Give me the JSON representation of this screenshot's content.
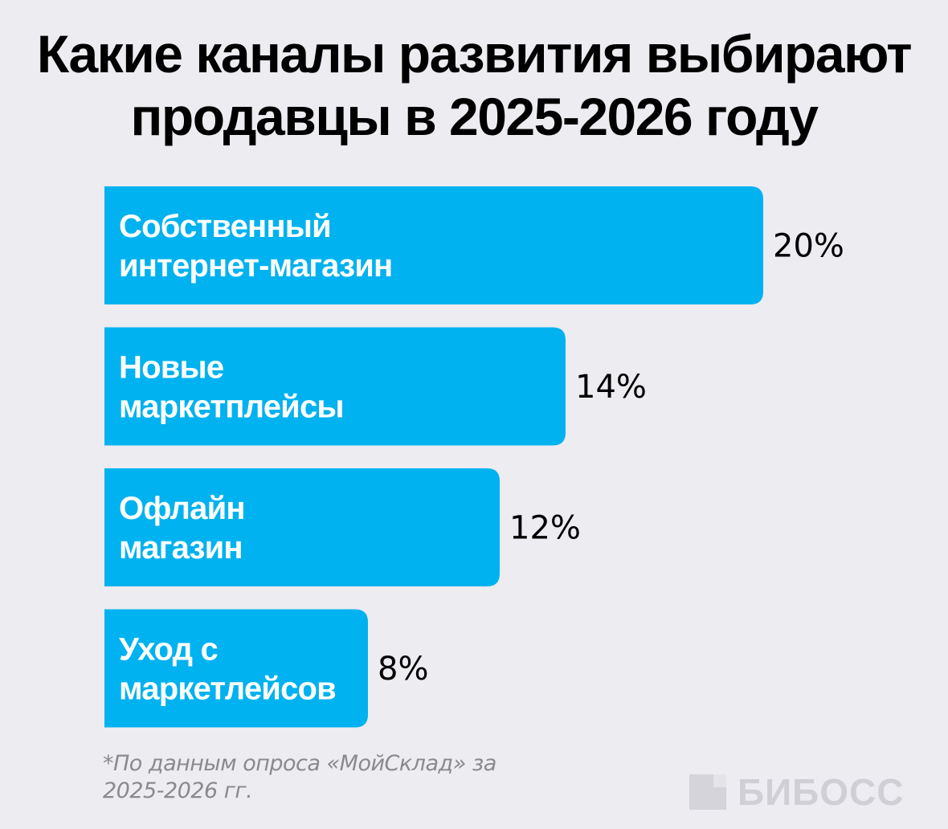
{
  "title": {
    "line1": "Какие каналы развития выбирают",
    "line2": "продавцы в 2025-2026 году"
  },
  "chart_data": {
    "type": "bar",
    "orientation": "horizontal",
    "categories": [
      [
        "Собственный",
        "интернет-магазин"
      ],
      [
        "Новые",
        "маркетплейсы"
      ],
      [
        "Офлайн",
        "магазин"
      ],
      [
        "Уход с",
        "маркетлейсов"
      ]
    ],
    "values": [
      20,
      14,
      12,
      8
    ],
    "value_labels": [
      "20%",
      "14%",
      "12%",
      "8%"
    ],
    "unit": "%",
    "bar_color": "#00B2EF",
    "bar_label_color": "#FFFFFF",
    "value_label_color": "#000000",
    "xlim": [
      0,
      20
    ],
    "grid": false,
    "legend": "none"
  },
  "footnote": {
    "line1": "*По данным опроса «МойСклад» за",
    "line2": "2025-2026 гг."
  },
  "brand": {
    "name": "БИБОСС"
  },
  "colors": {
    "background": "#ECECF1",
    "bar": "#00B2EF",
    "footnote": "#8A8A8E",
    "brand": "#CFCFD5"
  }
}
